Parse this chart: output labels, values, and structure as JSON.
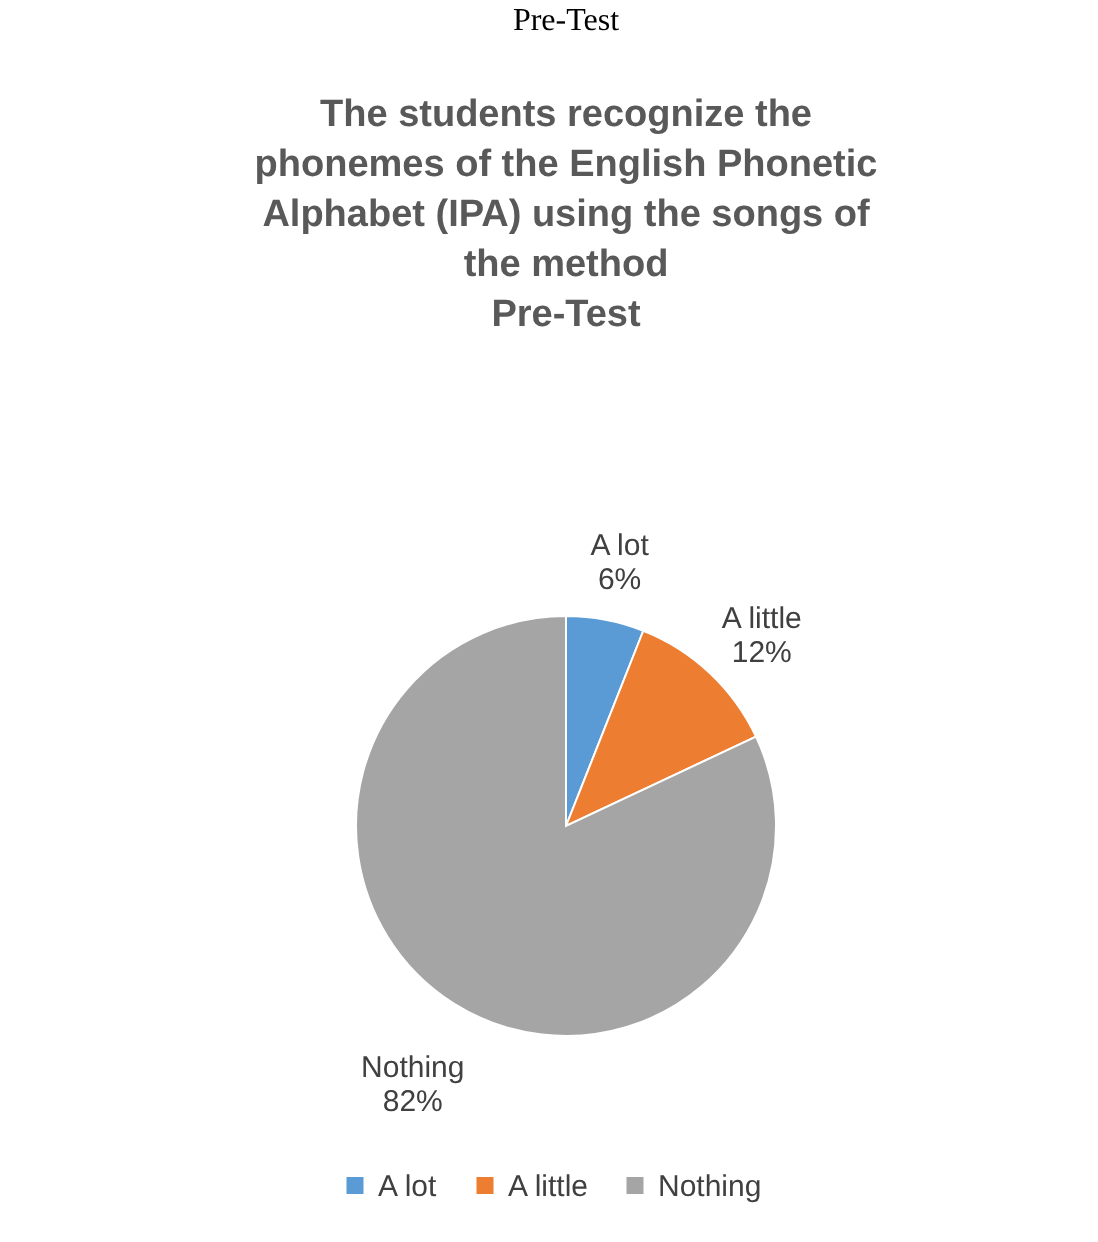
{
  "chart_data": {
    "type": "pie",
    "title": "The students recognize the phonemes of the English Phonetic Alphabet (IPA) using the songs of the method",
    "subtitle": "Pre-Test",
    "annotations": [
      "Pre-Test"
    ],
    "categories": [
      "A lot",
      "A little",
      "Nothing"
    ],
    "values": [
      6,
      12,
      82
    ],
    "value_labels": [
      "6%",
      "12%",
      "82%"
    ],
    "colors": [
      "#5b9bd5",
      "#ed7d31",
      "#a5a5a5"
    ],
    "legend": "bottom"
  }
}
